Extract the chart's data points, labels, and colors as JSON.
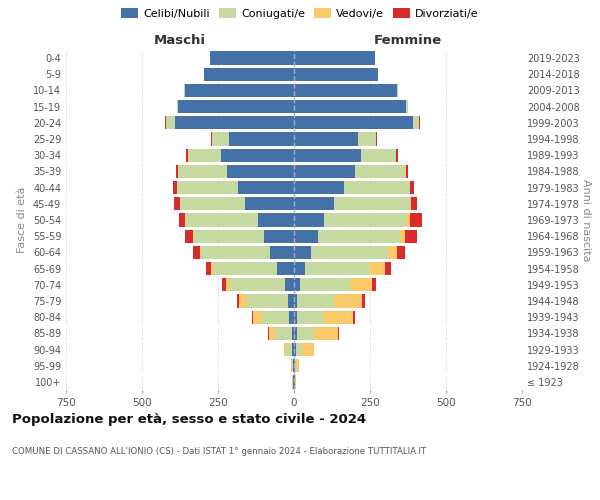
{
  "age_groups": [
    "100+",
    "95-99",
    "90-94",
    "85-89",
    "80-84",
    "75-79",
    "70-74",
    "65-69",
    "60-64",
    "55-59",
    "50-54",
    "45-49",
    "40-44",
    "35-39",
    "30-34",
    "25-29",
    "20-24",
    "15-19",
    "10-14",
    "5-9",
    "0-4"
  ],
  "birth_years": [
    "≤ 1923",
    "1924-1928",
    "1929-1933",
    "1934-1938",
    "1939-1943",
    "1944-1948",
    "1949-1953",
    "1954-1958",
    "1959-1963",
    "1964-1968",
    "1969-1973",
    "1974-1978",
    "1979-1983",
    "1984-1988",
    "1989-1993",
    "1994-1998",
    "1999-2003",
    "2004-2008",
    "2009-2013",
    "2014-2018",
    "2019-2023"
  ],
  "males": {
    "celibi": [
      2,
      3,
      5,
      8,
      15,
      20,
      30,
      55,
      80,
      100,
      120,
      160,
      185,
      220,
      240,
      215,
      390,
      380,
      360,
      295,
      275
    ],
    "coniugati": [
      2,
      5,
      20,
      55,
      90,
      135,
      180,
      210,
      225,
      230,
      235,
      215,
      200,
      160,
      110,
      55,
      30,
      5,
      2,
      0,
      0
    ],
    "vedovi": [
      1,
      3,
      8,
      20,
      30,
      25,
      15,
      8,
      5,
      3,
      2,
      1,
      1,
      0,
      0,
      0,
      0,
      0,
      0,
      0,
      0
    ],
    "divorziati": [
      0,
      0,
      1,
      2,
      3,
      8,
      12,
      18,
      22,
      25,
      22,
      18,
      12,
      8,
      5,
      2,
      3,
      0,
      0,
      0,
      0
    ]
  },
  "females": {
    "nubili": [
      2,
      3,
      5,
      10,
      10,
      10,
      20,
      35,
      55,
      80,
      100,
      130,
      165,
      200,
      220,
      210,
      390,
      370,
      340,
      275,
      265
    ],
    "coniugate": [
      1,
      5,
      20,
      55,
      85,
      120,
      165,
      215,
      255,
      270,
      270,
      250,
      215,
      165,
      115,
      60,
      20,
      5,
      2,
      0,
      0
    ],
    "vedove": [
      2,
      8,
      40,
      80,
      100,
      95,
      70,
      50,
      30,
      15,
      10,
      5,
      3,
      2,
      1,
      0,
      0,
      0,
      0,
      0,
      0
    ],
    "divorziate": [
      0,
      0,
      1,
      2,
      5,
      10,
      15,
      18,
      25,
      40,
      40,
      20,
      12,
      8,
      5,
      2,
      3,
      0,
      0,
      0,
      0
    ]
  },
  "colors": {
    "celibi": "#4472a8",
    "coniugati": "#c5d9a0",
    "vedovi": "#fac96a",
    "divorziati": "#d92b2b"
  },
  "title": "Popolazione per età, sesso e stato civile - 2024",
  "subtitle": "COMUNE DI CASSANO ALL'IONIO (CS) - Dati ISTAT 1° gennaio 2024 - Elaborazione TUTTITALIA.IT",
  "xlabel_left": "Maschi",
  "xlabel_right": "Femmine",
  "ylabel_left": "Fasce di età",
  "ylabel_right": "Anni di nascita",
  "xlim": 750,
  "background_color": "#ffffff",
  "grid_color": "#cccccc"
}
